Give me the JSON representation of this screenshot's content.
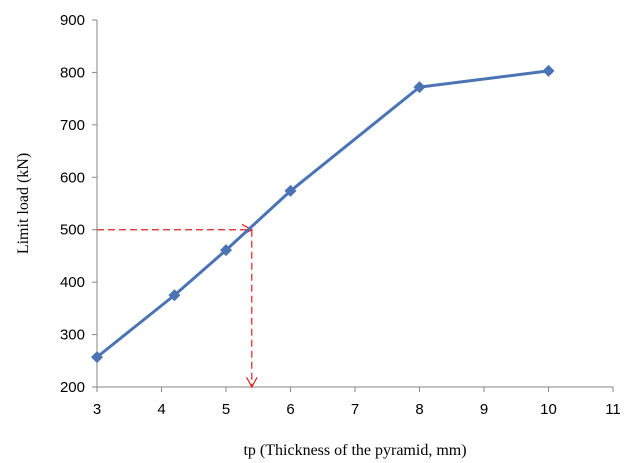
{
  "chart_data": {
    "type": "line",
    "title": "",
    "xlabel": "tp (Thickness of the pyramid, mm)",
    "ylabel": "Limit load (kN)",
    "xlim": [
      3,
      11
    ],
    "ylim": [
      200,
      900
    ],
    "xticks": [
      3,
      4,
      5,
      6,
      7,
      8,
      9,
      10,
      11
    ],
    "yticks": [
      200,
      300,
      400,
      500,
      600,
      700,
      800,
      900
    ],
    "grid": false,
    "series": [
      {
        "color": "#4a74b4",
        "marker": "diamond",
        "x": [
          3,
          4.2,
          5,
          6,
          8,
          10
        ],
        "y": [
          257,
          375,
          461,
          574,
          772,
          803
        ]
      }
    ],
    "annotations": [
      {
        "kind": "dashed-arrow",
        "color": "#e02020",
        "from": [
          3,
          500
        ],
        "to": [
          5.4,
          500
        ]
      },
      {
        "kind": "dashed-arrow",
        "color": "#e02020",
        "from": [
          5.4,
          500
        ],
        "to": [
          5.4,
          200
        ]
      }
    ]
  }
}
